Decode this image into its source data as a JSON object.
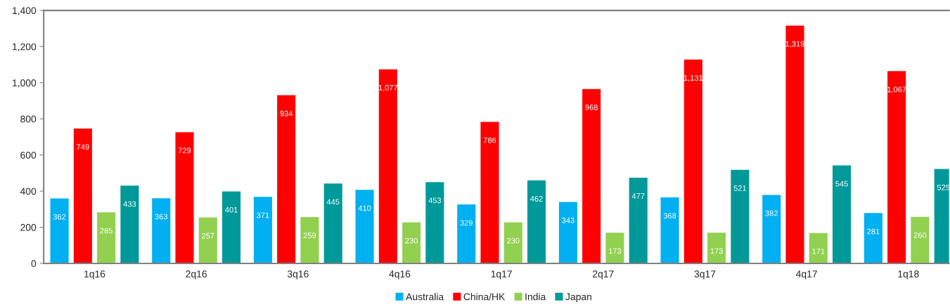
{
  "chart_data": {
    "type": "bar",
    "categories": [
      "1q16",
      "2q16",
      "3q16",
      "4q16",
      "1q17",
      "2q17",
      "3q17",
      "4q17",
      "1q18"
    ],
    "series": [
      {
        "name": "Australia",
        "color": "#00b0f0",
        "values": [
          362,
          363,
          371,
          410,
          329,
          343,
          368,
          382,
          281
        ]
      },
      {
        "name": "China/HK",
        "color": "#ff0000",
        "values": [
          749,
          729,
          934,
          1077,
          786,
          968,
          1131,
          1319,
          1067
        ],
        "value_labels": [
          "749",
          "729",
          "934",
          "1,077",
          "786",
          "968",
          "1,131",
          "1,319",
          "1,067"
        ]
      },
      {
        "name": "India",
        "color": "#92d050",
        "values": [
          285,
          257,
          259,
          230,
          230,
          173,
          173,
          171,
          260
        ]
      },
      {
        "name": "Japan",
        "color": "#009999",
        "values": [
          433,
          401,
          445,
          453,
          462,
          477,
          521,
          545,
          525
        ]
      }
    ],
    "ylim": [
      0,
      1400
    ],
    "yticks": [
      0,
      200,
      400,
      600,
      800,
      {
        "value": 1000,
        "label": "1,000"
      },
      {
        "value": 1200,
        "label": "1,200"
      },
      {
        "value": 1400,
        "label": "1,400"
      }
    ],
    "data_labels": true,
    "legend": "bottom",
    "grid": false
  }
}
